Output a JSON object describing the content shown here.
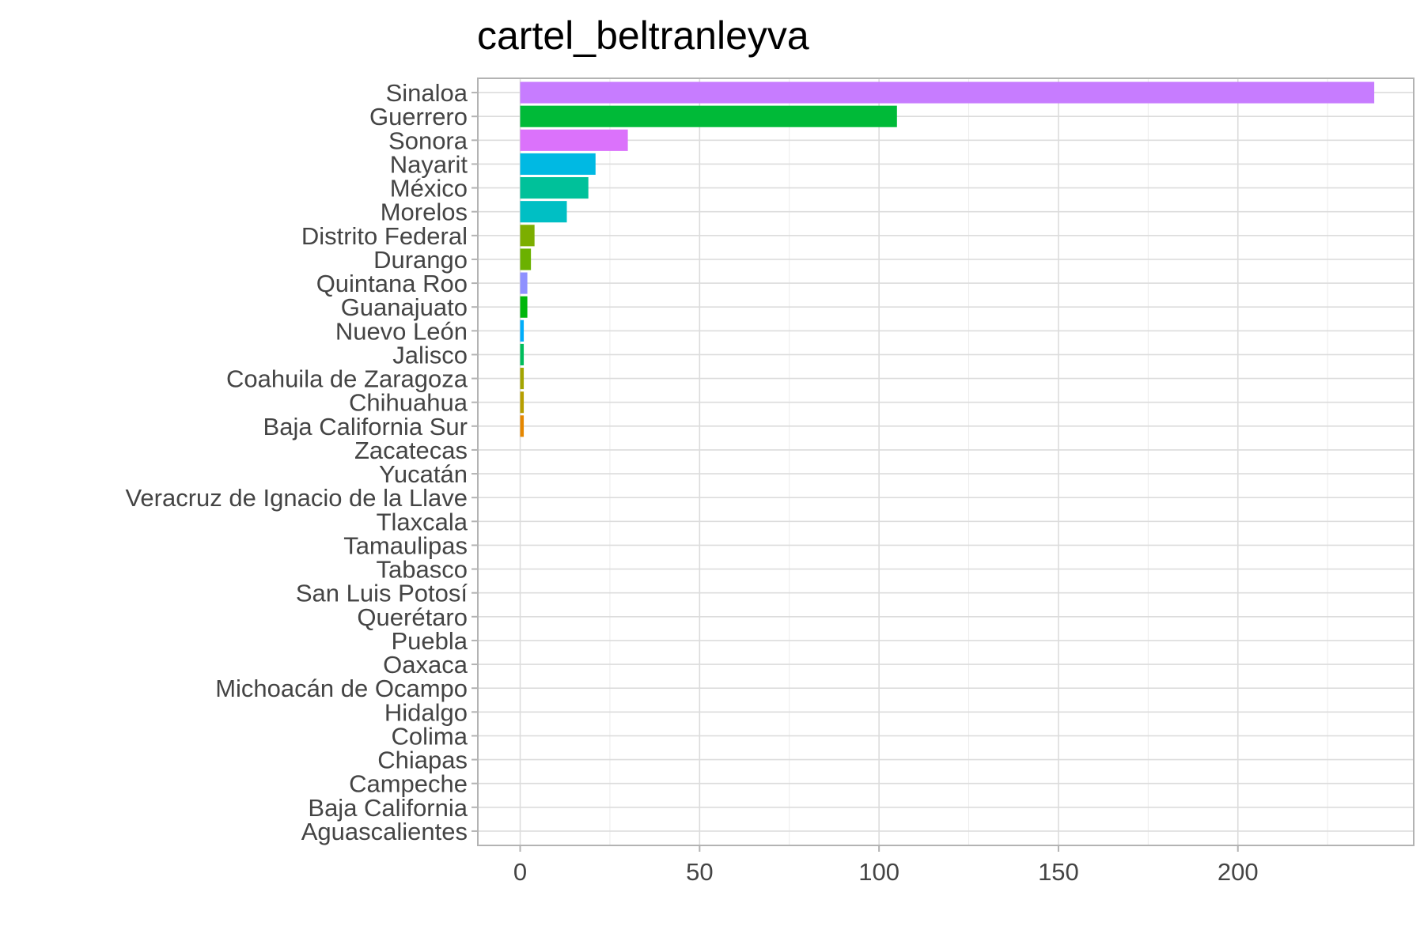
{
  "chart_data": {
    "type": "bar",
    "orientation": "horizontal",
    "title": "cartel_beltranleyva",
    "xlabel": "",
    "ylabel": "",
    "xlim": [
      -11.8,
      249
    ],
    "x_ticks": [
      0,
      50,
      100,
      150,
      200
    ],
    "x_tick_labels": [
      "0",
      "50",
      "100",
      "150",
      "200"
    ],
    "grid": true,
    "legend": "none",
    "categories": [
      "Sinaloa",
      "Guerrero",
      "Sonora",
      "Nayarit",
      "México",
      "Morelos",
      "Distrito Federal",
      "Durango",
      "Quintana Roo",
      "Guanajuato",
      "Nuevo León",
      "Jalisco",
      "Coahuila de Zaragoza",
      "Chihuahua",
      "Baja California Sur",
      "Zacatecas",
      "Yucatán",
      "Veracruz de Ignacio de la Llave",
      "Tlaxcala",
      "Tamaulipas",
      "Tabasco",
      "San Luis Potosí",
      "Querétaro",
      "Puebla",
      "Oaxaca",
      "Michoacán de Ocampo",
      "Hidalgo",
      "Colima",
      "Chiapas",
      "Campeche",
      "Baja California",
      "Aguascalientes"
    ],
    "values": [
      238,
      105,
      30,
      21,
      19,
      13,
      4,
      3,
      2,
      2,
      1,
      1,
      1,
      1,
      1,
      0,
      0,
      0,
      0,
      0,
      0,
      0,
      0,
      0,
      0,
      0,
      0,
      0,
      0,
      0,
      0,
      0
    ],
    "colors": [
      "#C77CFF",
      "#00BA38",
      "#DB72FB",
      "#00B9E3",
      "#00C19A",
      "#00BFC4",
      "#7CAE00",
      "#6BB100",
      "#8F91FF",
      "#00B70C",
      "#00ADFA",
      "#00BD5C",
      "#A3A500",
      "#B79F00",
      "#E58700",
      "#FF6C91",
      "#FF61C3",
      "#F8766D",
      "#F564E3",
      "#FF62BC",
      "#FF689F",
      "#FC717F",
      "#F37B59",
      "#EA8331",
      "#D89000",
      "#C49A00",
      "#AEA200",
      "#9EA700",
      "#00C08B",
      "#00B3F4",
      "#619CFF",
      "#B983FF"
    ]
  }
}
